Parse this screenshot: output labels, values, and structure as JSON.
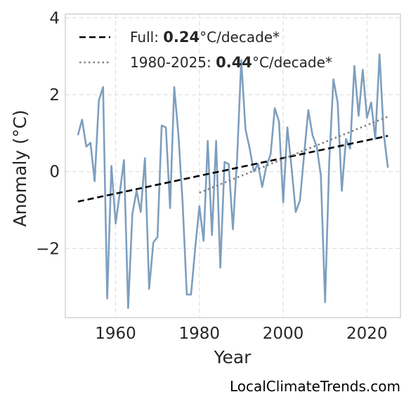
{
  "chart_data": {
    "type": "line",
    "title": "",
    "xlabel": "Year",
    "ylabel": "Anomaly (°C)",
    "xlim": [
      1948,
      2028
    ],
    "ylim": [
      -3.8,
      4.1
    ],
    "xticks": [
      "1960",
      "1980",
      "2000",
      "2020"
    ],
    "xtick_values": [
      1960,
      1980,
      2000,
      2020
    ],
    "yticks": [
      "−2",
      "0",
      "2",
      "4"
    ],
    "ytick_values": [
      -2,
      0,
      2,
      4
    ],
    "grid": true,
    "legend_position": "top-left",
    "colors": {
      "series": "#7e9fbe",
      "full_trend": "#000000",
      "recent_trend": "#808080",
      "grid": "#dddddd",
      "frame": "#c8c8c8"
    },
    "series": [
      {
        "x": [
          1951,
          1952,
          1953,
          1954,
          1955,
          1956,
          1957,
          1958,
          1959,
          1960,
          1961,
          1962,
          1963,
          1964,
          1965,
          1966,
          1967,
          1968,
          1969,
          1970,
          1971,
          1972,
          1973,
          1974,
          1975,
          1976,
          1977,
          1978,
          1979,
          1980,
          1981,
          1982,
          1983,
          1984,
          1985,
          1986,
          1987,
          1988,
          1989,
          1990,
          1991,
          1992,
          1993,
          1994,
          1995,
          1996,
          1997,
          1998,
          1999,
          2000,
          2001,
          2002,
          2003,
          2004,
          2005,
          2006,
          2007,
          2008,
          2009,
          2010,
          2011,
          2012,
          2013,
          2014,
          2015,
          2016,
          2017,
          2018,
          2019,
          2020,
          2021,
          2022,
          2023,
          2024,
          2025
        ],
        "y": [
          0.95,
          1.35,
          0.65,
          0.75,
          -0.25,
          1.85,
          2.2,
          -3.3,
          0.15,
          -1.35,
          -0.55,
          0.3,
          -3.55,
          -1.1,
          -0.5,
          -1.05,
          0.35,
          -3.05,
          -1.85,
          -1.7,
          1.2,
          1.15,
          -0.95,
          2.2,
          0.95,
          -0.8,
          -3.2,
          -3.2,
          -2.0,
          -0.9,
          -1.8,
          0.8,
          -1.65,
          0.8,
          -2.5,
          0.25,
          0.2,
          -1.5,
          0.35,
          2.9,
          1.1,
          0.6,
          0.0,
          0.2,
          -0.4,
          0.15,
          0.45,
          1.65,
          1.3,
          -0.8,
          1.15,
          0.1,
          -1.05,
          -0.75,
          0.45,
          1.6,
          0.95,
          0.65,
          -0.1,
          -3.4,
          0.25,
          2.4,
          1.8,
          -0.5,
          0.85,
          0.6,
          2.75,
          1.45,
          2.65,
          1.4,
          1.8,
          0.85,
          3.05,
          1.0,
          0.1
        ]
      }
    ],
    "trend_lines": [
      {
        "x": [
          1951,
          2025
        ],
        "y": [
          -0.78,
          0.93
        ]
      },
      {
        "x": [
          1980,
          2025
        ],
        "y": [
          -0.55,
          1.43
        ]
      }
    ],
    "legend": [
      {
        "prefix": "Full: ",
        "bold": "0.24",
        "suffix": "°C/decade*"
      },
      {
        "prefix": "1980-2025: ",
        "bold": "0.44",
        "suffix": "°C/decade*"
      }
    ],
    "watermark": "LocalClimateTrends.com"
  }
}
